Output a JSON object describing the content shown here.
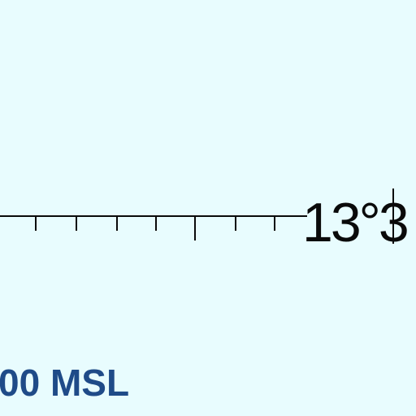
{
  "display": {
    "background_color": "#e8fcfe",
    "ink_color": "#0a0a0a",
    "accent_color": "#1f4b88"
  },
  "compass_tape": {
    "heading_text": "13°3"
  },
  "altitude": {
    "label": "00 MSL"
  }
}
